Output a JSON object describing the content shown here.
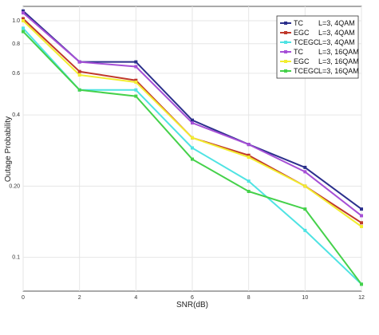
{
  "chart_data": {
    "type": "line",
    "xlabel": "SNR(dB)",
    "ylabel": "Outage Probability",
    "x": [
      0,
      2,
      4,
      6,
      8,
      10,
      12
    ],
    "x_ticks": [
      "0",
      "2",
      "4",
      "6",
      "8",
      "10",
      "12"
    ],
    "xlim": [
      0,
      12
    ],
    "y_scale": "log",
    "ylim": [
      0.072,
      1.15
    ],
    "y_ticks": [
      {
        "value": 0.1,
        "label": "0.1"
      },
      {
        "value": 0.2,
        "label": "0.20"
      },
      {
        "value": 0.4,
        "label": "0.4"
      },
      {
        "value": 0.6,
        "label": "0.6"
      },
      {
        "value": 0.8,
        "label": "0.8"
      },
      {
        "value": 1.0,
        "label": "1.0"
      }
    ],
    "grid": true,
    "legend_position": "top-right",
    "series": [
      {
        "name": "TC",
        "param": "L=3,  4QAM",
        "color": "#2b2f8c",
        "marker": "square",
        "values": [
          1.1,
          0.67,
          0.67,
          0.38,
          0.3,
          0.24,
          0.16
        ]
      },
      {
        "name": "EGC",
        "param": "L=3,  4QAM",
        "color": "#c0392b",
        "marker": "square",
        "values": [
          1.02,
          0.61,
          0.56,
          0.32,
          0.27,
          0.2,
          0.14
        ]
      },
      {
        "name": "TCEGC",
        "param": "L=3,  4QAM",
        "color": "#4fe3e3",
        "marker": "square",
        "values": [
          0.93,
          0.51,
          0.51,
          0.29,
          0.21,
          0.13,
          0.077
        ]
      },
      {
        "name": "TC",
        "param": "L=3, 16QAM",
        "color": "#a64fd6",
        "marker": "square",
        "values": [
          1.08,
          0.67,
          0.64,
          0.37,
          0.3,
          0.23,
          0.15
        ]
      },
      {
        "name": "EGC",
        "param": "L=3, 16QAM",
        "color": "#f2ee30",
        "marker": "square",
        "values": [
          1.0,
          0.59,
          0.55,
          0.32,
          0.265,
          0.2,
          0.135
        ]
      },
      {
        "name": "TCEGC",
        "param": "L=3, 16QAM",
        "color": "#45d14a",
        "marker": "square",
        "values": [
          0.9,
          0.51,
          0.48,
          0.26,
          0.19,
          0.16,
          0.077
        ]
      }
    ]
  }
}
